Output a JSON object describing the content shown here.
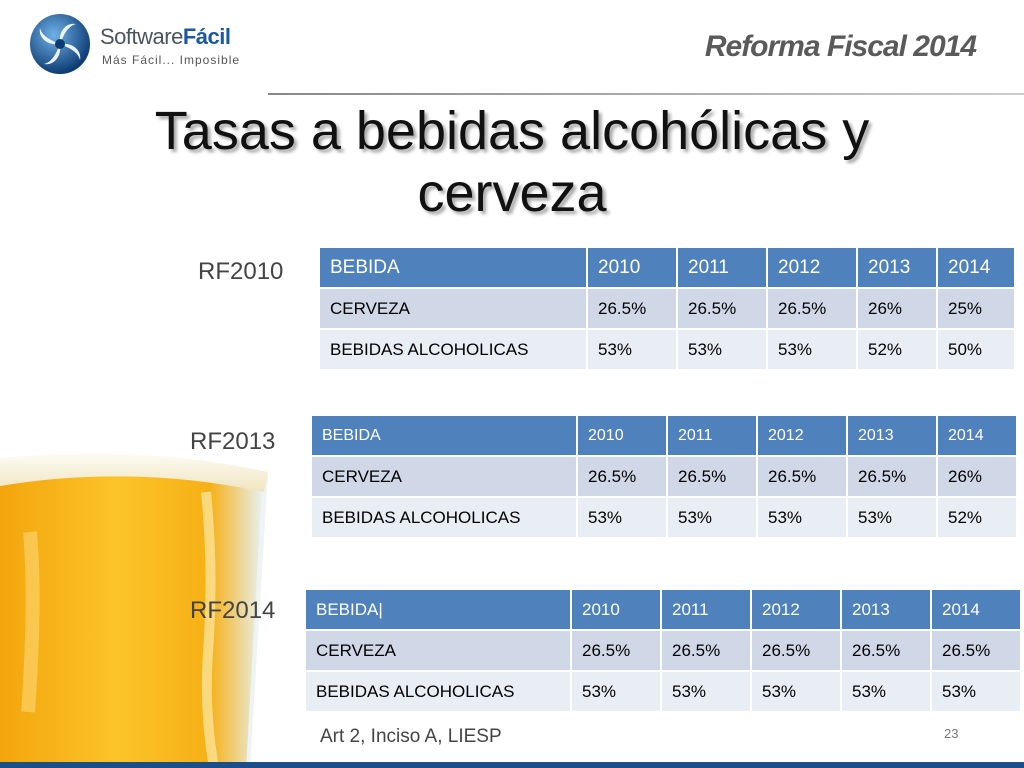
{
  "header": {
    "logo_name_regular": "Software",
    "logo_name_bold": "Fácil",
    "logo_tagline": "Más Fácil... Imposible",
    "brand_right": "Reforma Fiscal 2014"
  },
  "title_line1": "Tasas a bebidas alcohólicas y",
  "title_line2": "cerveza",
  "columns": [
    "BEBIDA",
    "2010",
    "2011",
    "2012",
    "2013",
    "2014"
  ],
  "tables": [
    {
      "label": "RF2010",
      "header_first": "BEBIDA",
      "rows": [
        [
          "CERVEZA",
          "26.5%",
          "26.5%",
          "26.5%",
          "26%",
          "25%"
        ],
        [
          "BEBIDAS ALCOHOLICAS",
          "53%",
          "53%",
          "53%",
          "52%",
          "50%"
        ]
      ]
    },
    {
      "label": "RF2013",
      "header_first": "BEBIDA",
      "rows": [
        [
          "CERVEZA",
          "26.5%",
          "26.5%",
          "26.5%",
          "26.5%",
          "26%"
        ],
        [
          "BEBIDAS ALCOHOLICAS",
          "53%",
          "53%",
          "53%",
          "53%",
          "52%"
        ]
      ]
    },
    {
      "label": "RF2014",
      "header_first": "BEBIDA|",
      "rows": [
        [
          "CERVEZA",
          "26.5%",
          "26.5%",
          "26.5%",
          "26.5%",
          "26.5%"
        ],
        [
          "BEBIDAS ALCOHOLICAS",
          "53%",
          "53%",
          "53%",
          "53%",
          "53%"
        ]
      ]
    }
  ],
  "footer": {
    "note": "Art 2, Inciso A, LIESP",
    "page_number": "23"
  }
}
